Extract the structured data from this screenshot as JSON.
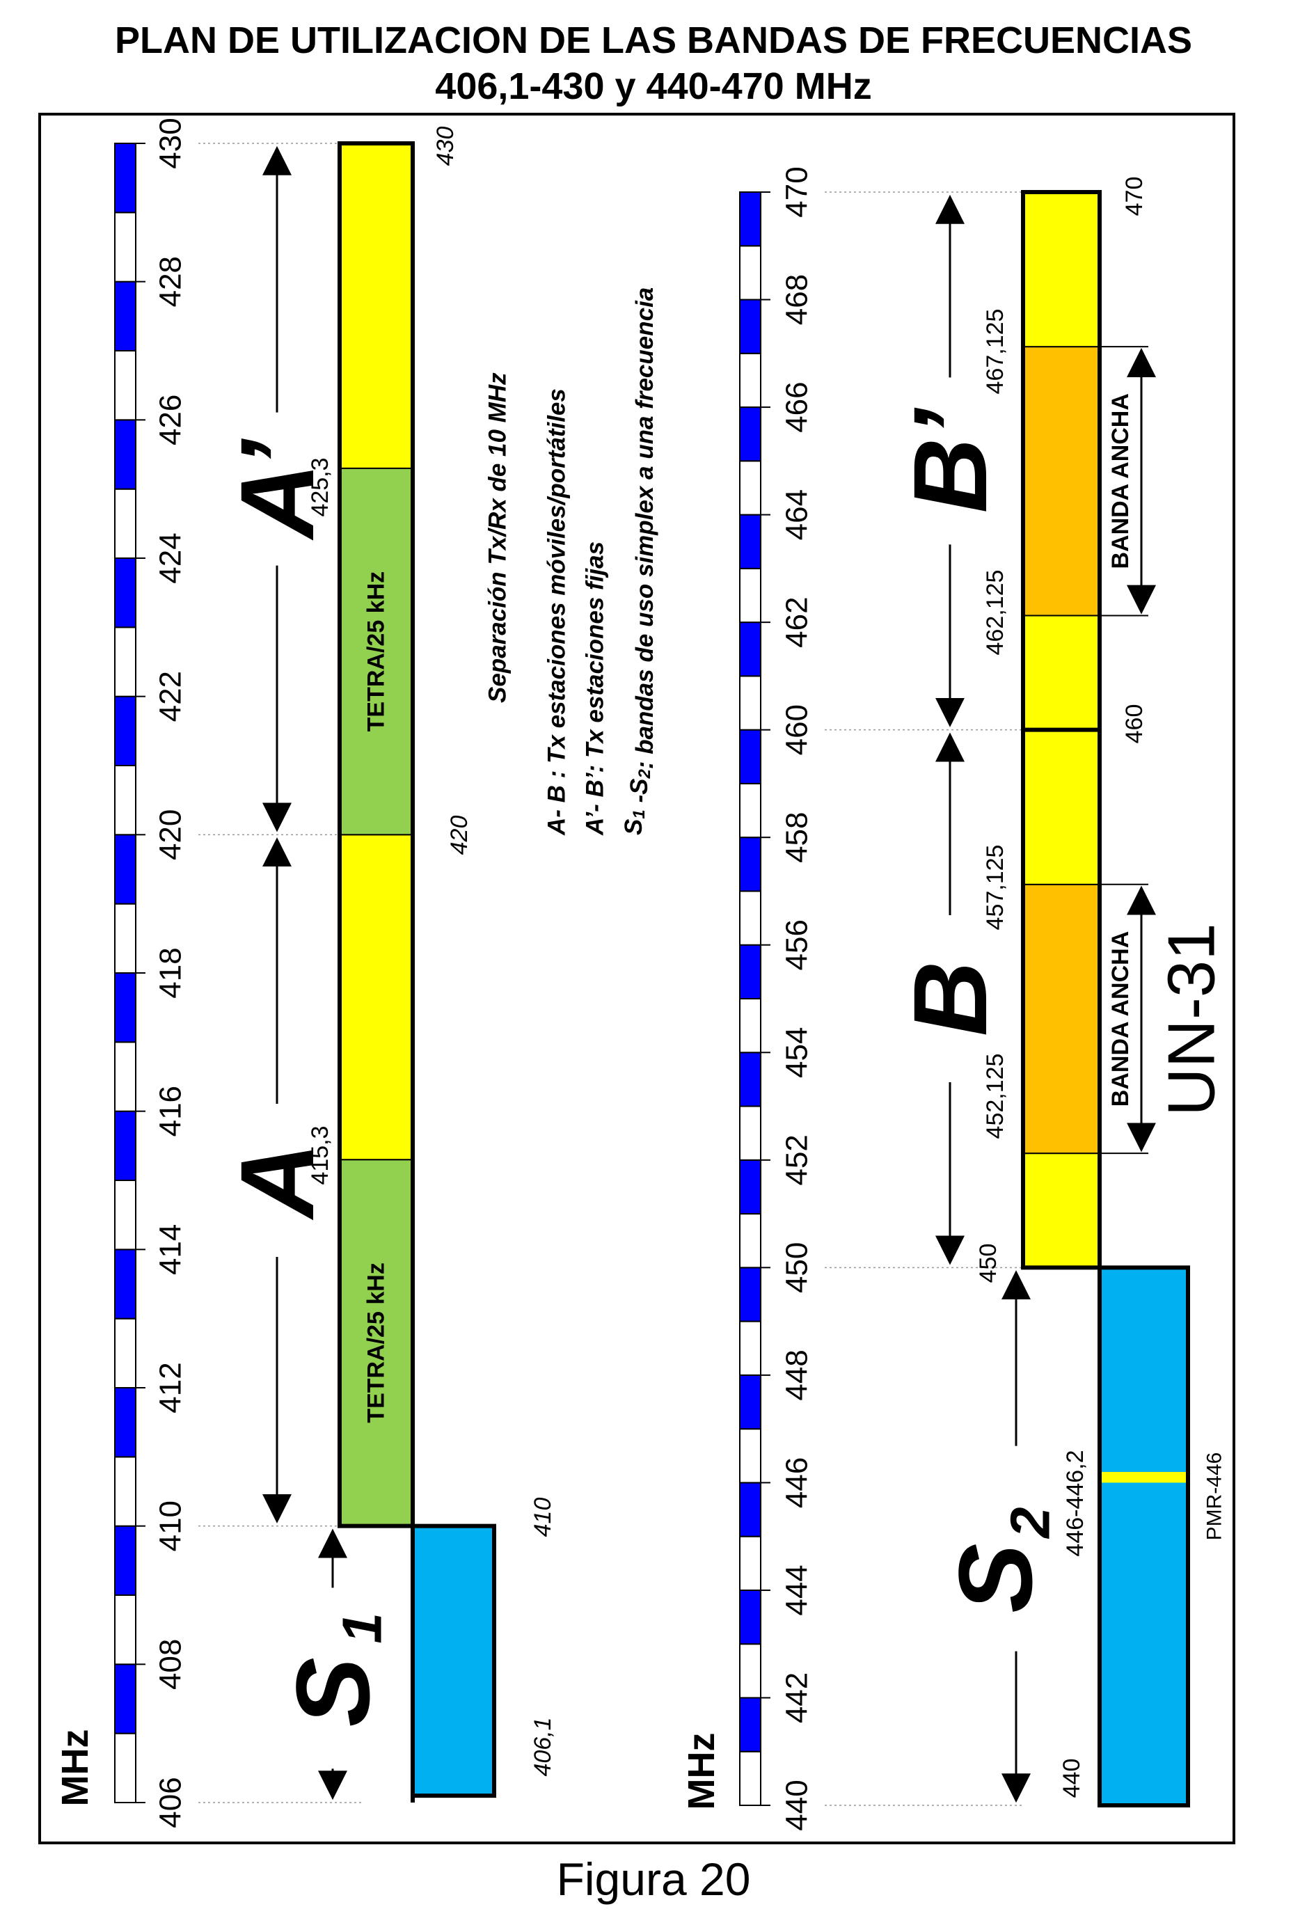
{
  "title_line1": "PLAN DE UTILIZACION DE LAS BANDAS DE FRECUENCIAS",
  "title_line2": "406,1-430 y 440-470 MHz",
  "figure_caption": "Figura 20",
  "unit": "MHz",
  "colors": {
    "yellow": "#ffff00",
    "green": "#92d050",
    "cyan": "#00b0f0",
    "orange": "#ffc000",
    "scale_blue": "#0000ff"
  },
  "upper_diagram": {
    "scale_min": 406,
    "scale_max": 430,
    "tick_labels": [
      "406",
      "408",
      "410",
      "412",
      "414",
      "416",
      "418",
      "420",
      "422",
      "424",
      "426",
      "428",
      "430"
    ],
    "blocks": [
      {
        "name": "s1-block",
        "from": 406.1,
        "to": 410,
        "color": "cyan",
        "label": ""
      },
      {
        "name": "tetra-block-lower",
        "from": 410,
        "to": 415.3,
        "color": "green",
        "label": "TETRA/25 kHz"
      },
      {
        "name": "yellow-block-lower",
        "from": 415.3,
        "to": 420,
        "color": "yellow",
        "label": ""
      },
      {
        "name": "tetra-block-upper",
        "from": 420,
        "to": 425.3,
        "color": "green",
        "label": "TETRA/25 kHz"
      },
      {
        "name": "yellow-block-upper",
        "from": 425.3,
        "to": 430,
        "color": "yellow",
        "label": ""
      }
    ],
    "freq_labels": [
      "406,1",
      "410",
      "415,3",
      "420",
      "425,3",
      "430"
    ],
    "ranges": [
      {
        "name": "S",
        "sub": "1",
        "from": 406,
        "to": 410
      },
      {
        "name": "A",
        "sub": "",
        "from": 410,
        "to": 420
      },
      {
        "name": "A’",
        "sub": "",
        "from": 420,
        "to": 430
      }
    ]
  },
  "legend": {
    "line1": "Separación Tx/Rx de 10 MHz",
    "line2": "A- B : Tx estaciones móviles/portátiles",
    "line3": "A’- B’: Tx estaciones fijas",
    "line4_s1": "S",
    "line4_sub1": "1",
    "line4_mid": " -S",
    "line4_sub2": "2",
    "line4_rest": ": bandas de uso simplex a una frecuencia"
  },
  "lower_diagram": {
    "scale_min": 440,
    "scale_max": 470,
    "tick_labels": [
      "440",
      "442",
      "444",
      "446",
      "448",
      "450",
      "452",
      "454",
      "456",
      "458",
      "460",
      "462",
      "464",
      "466",
      "468",
      "470"
    ],
    "blocks": [
      {
        "name": "s2-block",
        "from": 440,
        "to": 450,
        "color": "cyan",
        "label": ""
      },
      {
        "name": "pmr-446-strip",
        "from": 446,
        "to": 446.2,
        "color": "yellow",
        "label": ""
      },
      {
        "name": "b-yellow-lower",
        "from": 450,
        "to": 452.125,
        "color": "yellow",
        "label": ""
      },
      {
        "name": "b-orange",
        "from": 452.125,
        "to": 457.125,
        "color": "orange",
        "label": "BANDA  ANCHA"
      },
      {
        "name": "b-yellow-upper",
        "from": 457.125,
        "to": 460,
        "color": "yellow",
        "label": ""
      },
      {
        "name": "bp-yellow-lower",
        "from": 460,
        "to": 462.125,
        "color": "yellow",
        "label": ""
      },
      {
        "name": "bp-orange",
        "from": 462.125,
        "to": 467.125,
        "color": "orange",
        "label": "BANDA  ANCHA"
      },
      {
        "name": "bp-yellow-upper",
        "from": 467.125,
        "to": 470,
        "color": "yellow",
        "label": ""
      }
    ],
    "freq_labels": [
      "440",
      "446-446,2",
      "450",
      "452,125",
      "457,125",
      "460",
      "462,125",
      "467,125",
      "470"
    ],
    "pmr_label": "PMR-446",
    "ranges": [
      {
        "name": "S",
        "sub": "2",
        "from": 440,
        "to": 450
      },
      {
        "name": "B",
        "sub": "",
        "from": 450,
        "to": 460
      },
      {
        "name": "B’",
        "sub": "",
        "from": 460,
        "to": 470
      }
    ],
    "note": "UN-31"
  }
}
